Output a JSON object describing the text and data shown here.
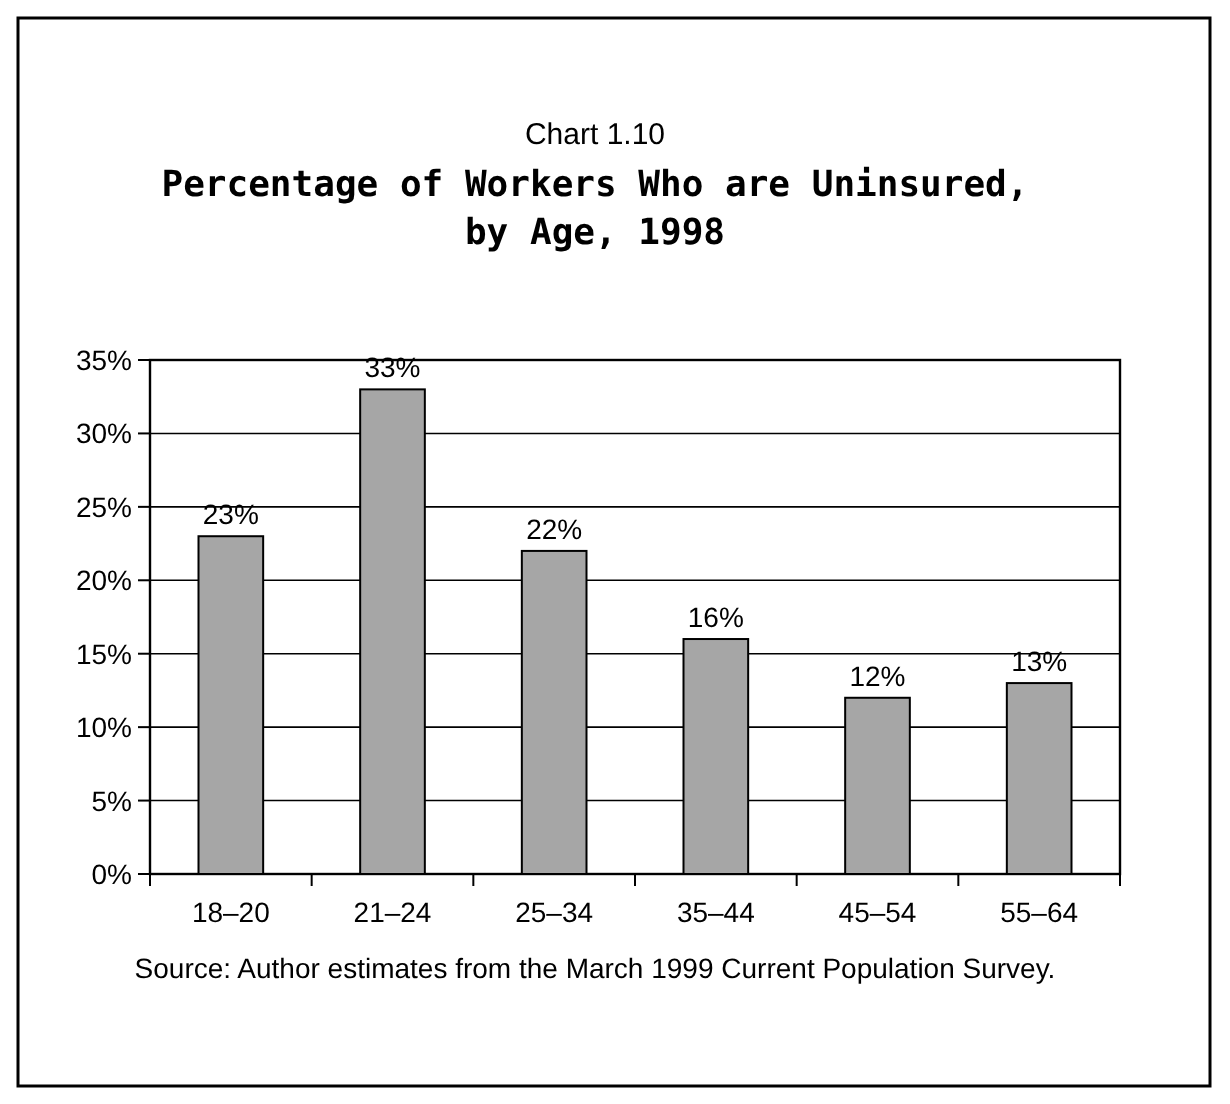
{
  "chart_data": {
    "type": "bar",
    "title": "Chart 1.10",
    "subtitle": "Percentage of Workers Who are Uninsured, by Age, 1998",
    "categories": [
      "18–20",
      "21–24",
      "25–34",
      "35–44",
      "45–54",
      "55–64"
    ],
    "values": [
      23,
      33,
      22,
      16,
      12,
      13
    ],
    "value_labels": [
      "23%",
      "33%",
      "22%",
      "16%",
      "12%",
      "13%"
    ],
    "color": "#a6a6a6",
    "ylim": [
      0,
      35
    ],
    "yticks": [
      {
        "value": 0,
        "label": "0%"
      },
      {
        "value": 5,
        "label": "5%"
      },
      {
        "value": 10,
        "label": "10%"
      },
      {
        "value": 15,
        "label": "15%"
      },
      {
        "value": 20,
        "label": "20%"
      },
      {
        "value": 25,
        "label": "25%"
      },
      {
        "value": 30,
        "label": "30%"
      },
      {
        "value": 35,
        "label": "35%"
      }
    ],
    "grid": "y",
    "annotations": [
      "Source: Author estimates from the March 1999 Current Population Survey."
    ]
  }
}
